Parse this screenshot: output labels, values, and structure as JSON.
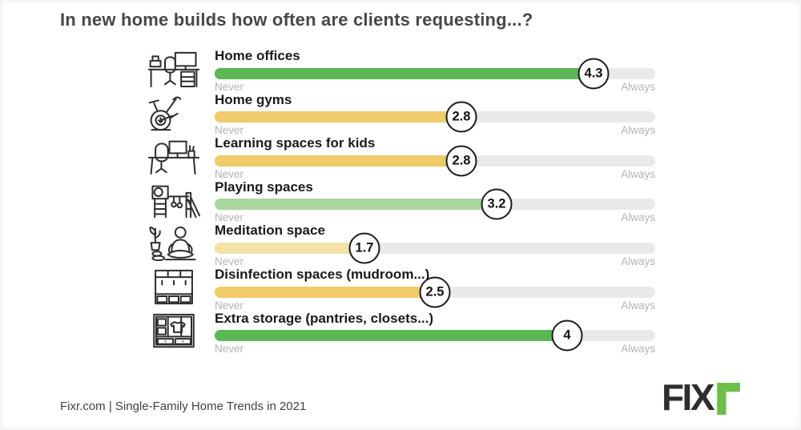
{
  "title": "In new home builds how often are clients requesting...?",
  "scale": {
    "min_label": "Never",
    "max_label": "Always",
    "max": 5
  },
  "rows": [
    {
      "label": "Home offices",
      "value": 4.3,
      "color": "#5bb854",
      "icon": "home-office-icon"
    },
    {
      "label": "Home gyms",
      "value": 2.8,
      "color": "#efcb69",
      "icon": "exercise-bike-icon"
    },
    {
      "label": "Learning spaces for kids",
      "value": 2.8,
      "color": "#efcb69",
      "icon": "kids-desk-icon"
    },
    {
      "label": "Playing spaces",
      "value": 3.2,
      "color": "#a8d79f",
      "icon": "playground-icon"
    },
    {
      "label": "Meditation space",
      "value": 1.7,
      "color": "#f3e1a7",
      "icon": "meditation-icon"
    },
    {
      "label": "Disinfection spaces (mudroom...)",
      "value": 2.5,
      "color": "#efcb69",
      "icon": "mudroom-icon"
    },
    {
      "label": "Extra storage (pantries, closets...)",
      "value": 4,
      "color": "#5bb854",
      "icon": "wardrobe-icon"
    }
  ],
  "footer": {
    "source": "Fixr.com | Single-Family Home Trends in 2021",
    "logo_text": "FIX",
    "logo_r": "r"
  },
  "colors": {
    "track": "#e9e9e9",
    "strong_green": "#5bb854",
    "light_green": "#a8d79f",
    "yellow": "#efcb69",
    "pale_yellow": "#f3e1a7",
    "logo_dark": "#2e2e2e",
    "logo_green": "#6cc04a"
  },
  "chart_data": {
    "type": "bar",
    "orientation": "horizontal",
    "title": "In new home builds how often are clients requesting...?",
    "categories": [
      "Home offices",
      "Home gyms",
      "Learning spaces for kids",
      "Playing spaces",
      "Meditation space",
      "Disinfection spaces (mudroom...)",
      "Extra storage (pantries, closets...)"
    ],
    "values": [
      4.3,
      2.8,
      2.8,
      3.2,
      1.7,
      2.5,
      4
    ],
    "value_labels": [
      "4.3",
      "2.8",
      "2.8",
      "3.2",
      "1.7",
      "2.5",
      "4"
    ],
    "xlim": [
      0,
      5
    ],
    "scale_endpoint_labels": [
      "Never",
      "Always"
    ],
    "bar_colors": [
      "#5bb854",
      "#efcb69",
      "#efcb69",
      "#a8d79f",
      "#f3e1a7",
      "#efcb69",
      "#5bb854"
    ],
    "grid": false,
    "legend": false,
    "source": "Fixr.com | Single-Family Home Trends in 2021"
  }
}
